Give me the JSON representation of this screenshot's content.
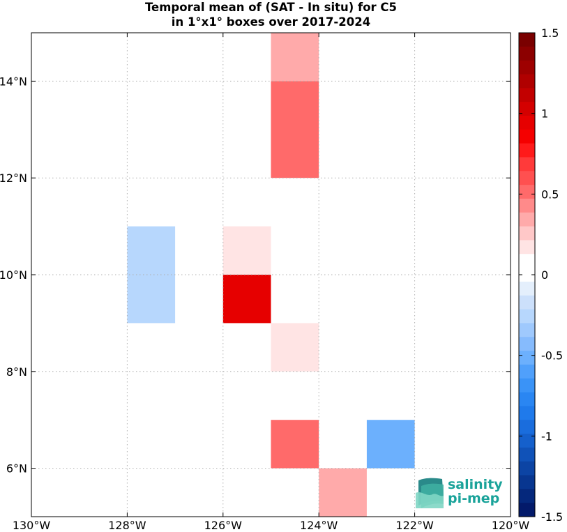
{
  "title": {
    "line1": "Temporal mean of (SAT - In situ) for C5",
    "line2": "in 1°x1° boxes over 2017-2024"
  },
  "logo": {
    "line1": "salinity",
    "line2": "pi-mep"
  },
  "chart_data": {
    "type": "heatmap",
    "x_ticks": [
      "130°W",
      "128°W",
      "126°W",
      "124°W",
      "122°W",
      "120°W"
    ],
    "y_ticks": [
      "6°N",
      "8°N",
      "10°N",
      "12°N",
      "14°N"
    ],
    "xlim": [
      -130,
      -120
    ],
    "ylim": [
      5,
      15
    ],
    "grid": true,
    "cells": [
      {
        "lon": [
          -125,
          -124
        ],
        "lat": [
          14,
          15
        ],
        "value": 0.3
      },
      {
        "lon": [
          -125,
          -124
        ],
        "lat": [
          12,
          14
        ],
        "value": 0.55
      },
      {
        "lon": [
          -128,
          -127
        ],
        "lat": [
          9,
          11
        ],
        "value": -0.25
      },
      {
        "lon": [
          -126,
          -125
        ],
        "lat": [
          10,
          11
        ],
        "value": 0.15
      },
      {
        "lon": [
          -126,
          -125
        ],
        "lat": [
          9,
          10
        ],
        "value": 0.95
      },
      {
        "lon": [
          -125,
          -124
        ],
        "lat": [
          8,
          9
        ],
        "value": 0.15
      },
      {
        "lon": [
          -125,
          -124
        ],
        "lat": [
          6,
          7
        ],
        "value": 0.55
      },
      {
        "lon": [
          -123,
          -122
        ],
        "lat": [
          6,
          7
        ],
        "value": -0.55
      },
      {
        "lon": [
          -124,
          -123
        ],
        "lat": [
          5,
          6
        ],
        "value": 0.3
      }
    ],
    "colorbar": {
      "range": [
        -1.5,
        1.5
      ],
      "ticks": [
        "1.5",
        "1",
        "0.5",
        "0",
        "-0.5",
        "-1",
        "-1.5"
      ],
      "colors": [
        "#7a0000",
        "#8c0000",
        "#9e0000",
        "#b00000",
        "#c20000",
        "#d40000",
        "#e60000",
        "#f50000",
        "#ff1a1a",
        "#ff3a3a",
        "#ff5050",
        "#ff6a6a",
        "#ff8a8a",
        "#ffaaaa",
        "#ffc8c8",
        "#ffe4e4",
        "#ffffff",
        "#ffffff",
        "#e4effc",
        "#cce0fb",
        "#b7d7fd",
        "#9fc9fd",
        "#86bbfd",
        "#6cb0fd",
        "#50a0fb",
        "#3a93f7",
        "#2a86f2",
        "#1f7aeb",
        "#1a6ddd",
        "#1560cc",
        "#1052b8",
        "#0c44a4",
        "#083690",
        "#05287c",
        "#031a6a"
      ]
    }
  }
}
